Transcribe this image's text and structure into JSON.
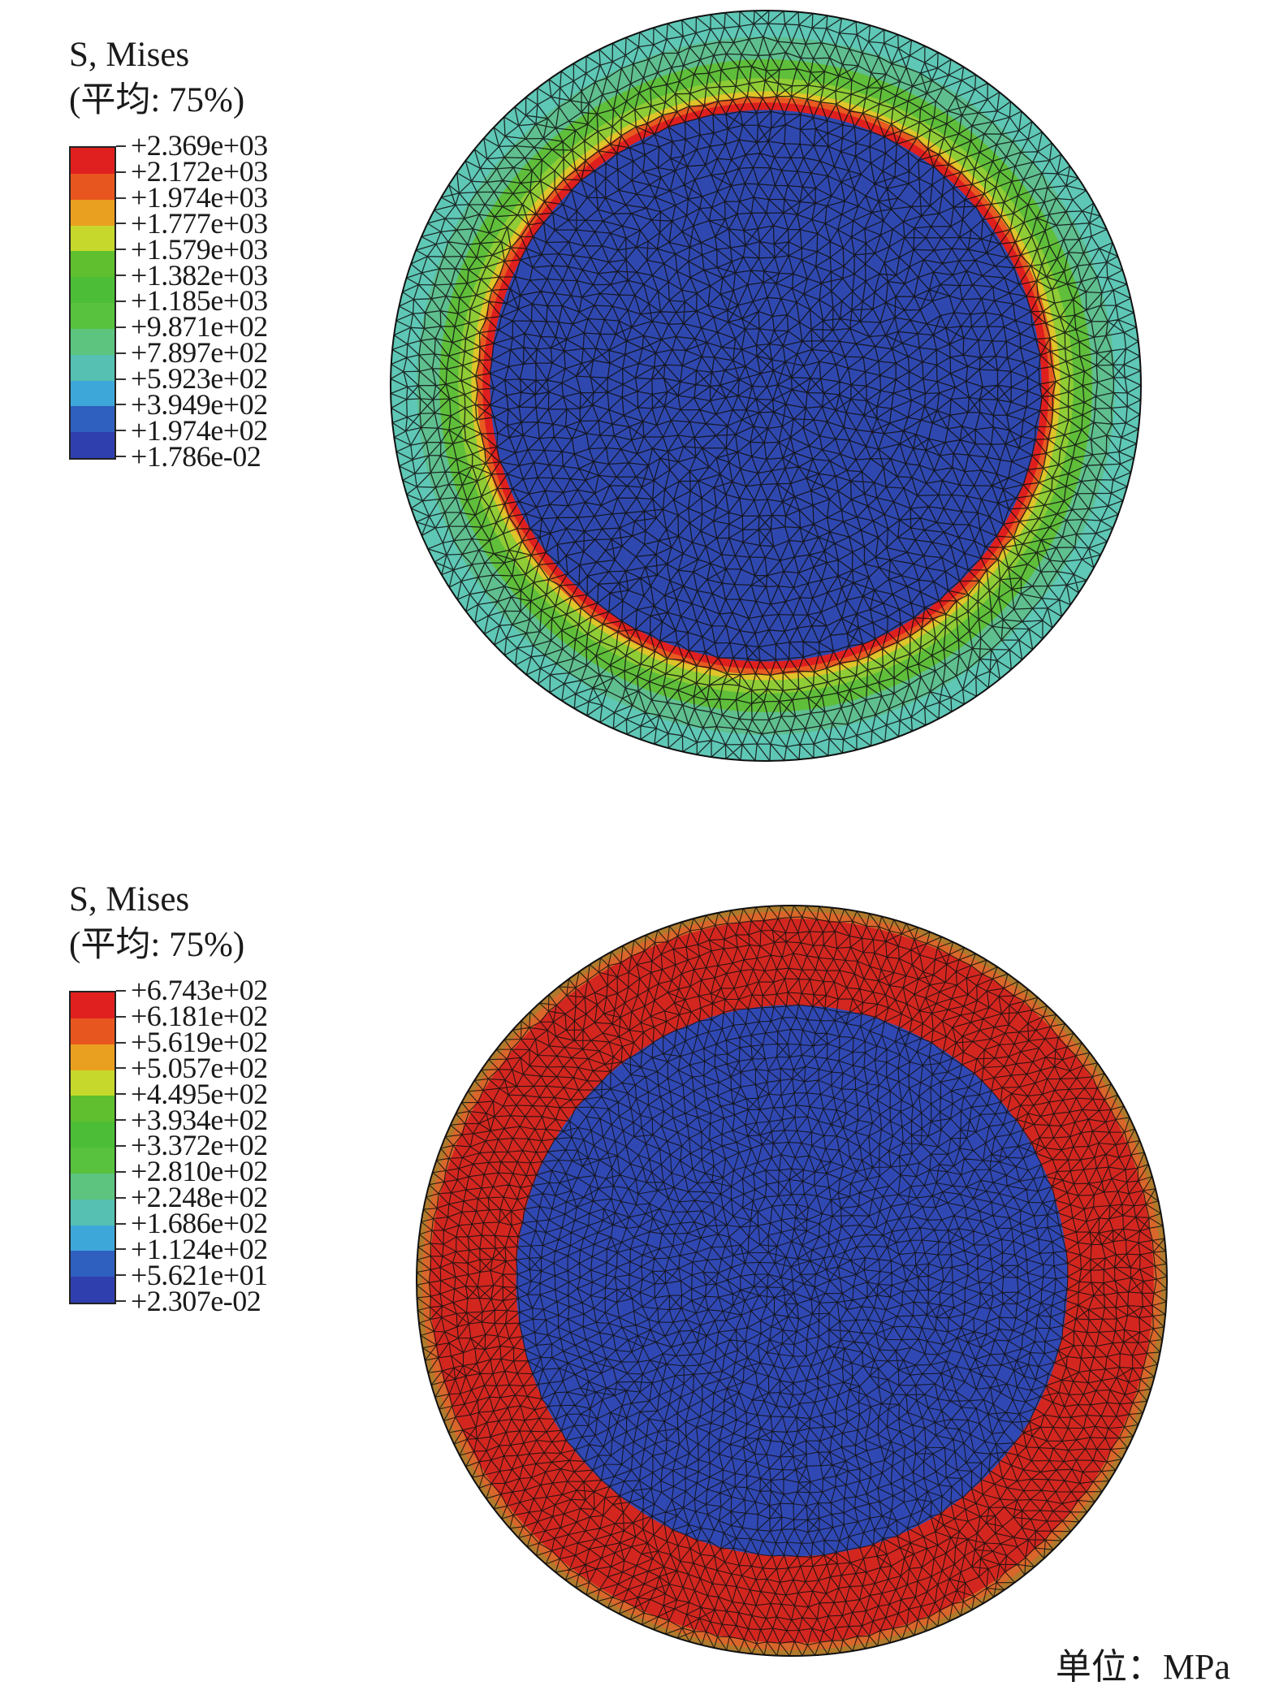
{
  "figure": {
    "units_label": "单位：MPa"
  },
  "panels": [
    {
      "id": "top",
      "legend": {
        "title_line1": "S, Mises",
        "title_line2": "(平均: 75%)",
        "tick_labels": [
          "+2.369e+03",
          "+2.172e+03",
          "+1.974e+03",
          "+1.777e+03",
          "+1.579e+03",
          "+1.382e+03",
          "+1.185e+03",
          "+9.871e+02",
          "+7.897e+02",
          "+5.923e+02",
          "+3.949e+02",
          "+1.974e+02",
          "+1.786e-02"
        ],
        "band_colors": [
          "#e0201e",
          "#e8561f",
          "#e9a021",
          "#c6d82b",
          "#5fbf2e",
          "#4cbd36",
          "#58c13e",
          "#5cc47e",
          "#56c0b2",
          "#3ea7d9",
          "#2f5fbf",
          "#2f3fae"
        ]
      },
      "rings": [
        {
          "r": 1.0,
          "color": "#5ec7b6"
        },
        {
          "r": 0.93,
          "color": "#5fbf8f"
        },
        {
          "r": 0.87,
          "color": "#5fbe3a"
        },
        {
          "r": 0.82,
          "color": "#8fcc35"
        },
        {
          "r": 0.785,
          "color": "#dfc42a"
        },
        {
          "r": 0.77,
          "color": "#e75a20"
        },
        {
          "r": 0.755,
          "color": "#df1f1e"
        },
        {
          "r": 0.735,
          "color": "#2f48b0"
        }
      ]
    },
    {
      "id": "bottom",
      "legend": {
        "title_line1": "S, Mises",
        "title_line2": "(平均: 75%)",
        "tick_labels": [
          "+6.743e+02",
          "+6.181e+02",
          "+5.619e+02",
          "+5.057e+02",
          "+4.495e+02",
          "+3.934e+02",
          "+3.372e+02",
          "+2.810e+02",
          "+2.248e+02",
          "+1.686e+02",
          "+1.124e+02",
          "+5.621e+01",
          "+2.307e-02"
        ],
        "band_colors": [
          "#e0201e",
          "#e8561f",
          "#e9a021",
          "#c6d82b",
          "#5fbf2e",
          "#4cbd36",
          "#58c13e",
          "#5cc47e",
          "#56c0b2",
          "#3ea7d9",
          "#2f5fbf",
          "#2f3fae"
        ]
      },
      "rings": [
        {
          "r": 1.0,
          "color": "#b07a2c"
        },
        {
          "r": 0.985,
          "color": "#d9662a"
        },
        {
          "r": 0.965,
          "color": "#d3261f"
        },
        {
          "r": 0.735,
          "color": "#3048b3"
        }
      ]
    }
  ]
}
